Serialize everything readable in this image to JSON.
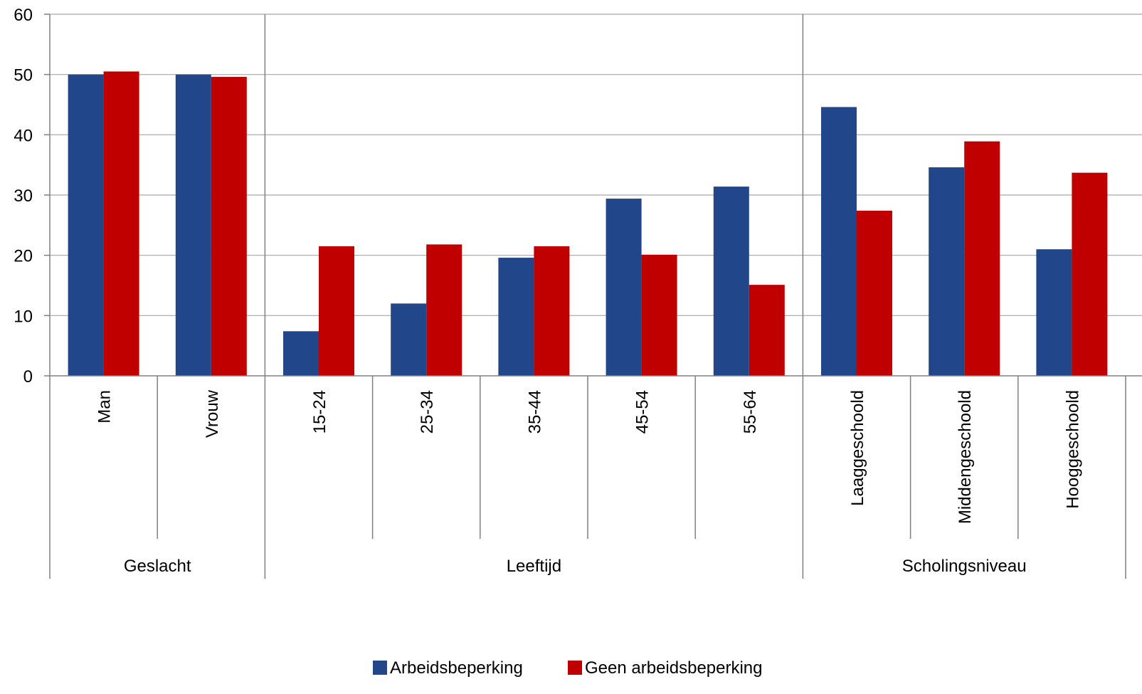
{
  "chart_data": {
    "type": "bar",
    "groups": [
      {
        "label": "Geslacht",
        "categories": [
          "Man",
          "Vrouw"
        ]
      },
      {
        "label": "Leeftijd",
        "categories": [
          "15-24",
          "25-34",
          "35-44",
          "45-54",
          "55-64"
        ]
      },
      {
        "label": "Scholingsniveau",
        "categories": [
          "Laaggeschoold",
          "Middengeschoold",
          "Hooggeschoold"
        ]
      }
    ],
    "categories": [
      "Man",
      "Vrouw",
      "15-24",
      "25-34",
      "35-44",
      "45-54",
      "55-64",
      "Laaggeschoold",
      "Middengeschoold",
      "Hooggeschoold"
    ],
    "series": [
      {
        "name": "Arbeidsbeperking",
        "color": "#22468A",
        "values": [
          50.0,
          50.0,
          7.4,
          12.0,
          19.6,
          29.4,
          31.4,
          44.6,
          34.6,
          21.0
        ]
      },
      {
        "name": "Geen arbeidsbeperking",
        "color": "#C00000",
        "values": [
          50.5,
          49.6,
          21.5,
          21.8,
          21.5,
          20.1,
          15.1,
          27.4,
          38.9,
          33.7
        ]
      }
    ],
    "ylim": [
      0,
      60
    ],
    "yticks": [
      0,
      10,
      20,
      30,
      40,
      50,
      60
    ],
    "grid": true,
    "legend": "bottom-center"
  }
}
